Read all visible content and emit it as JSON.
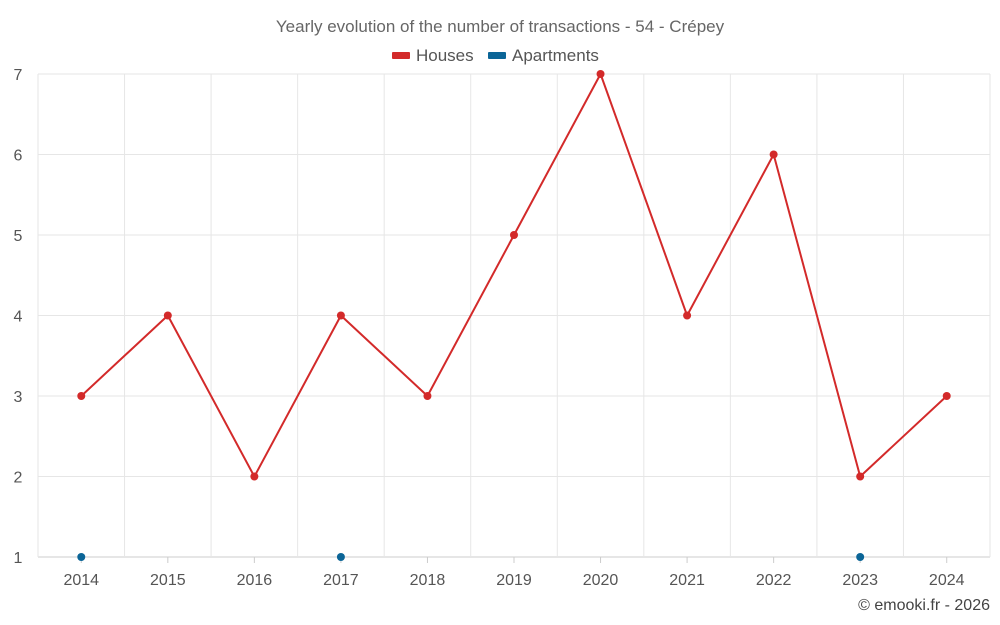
{
  "chart_data": {
    "type": "line",
    "title": "Yearly evolution of the number of transactions - 54 - Crépey",
    "categories": [
      "2014",
      "2015",
      "2016",
      "2017",
      "2018",
      "2019",
      "2020",
      "2021",
      "2022",
      "2023",
      "2024"
    ],
    "series": [
      {
        "name": "Houses",
        "color": "#d32a2a",
        "values": [
          3,
          4,
          2,
          4,
          3,
          5,
          7,
          4,
          6,
          2,
          3
        ]
      },
      {
        "name": "Apartments",
        "color": "#0b6597",
        "values": [
          1,
          null,
          null,
          1,
          null,
          null,
          null,
          null,
          null,
          1,
          null
        ]
      }
    ],
    "ylim": [
      1,
      7
    ],
    "yticks": [
      1,
      2,
      3,
      4,
      5,
      6,
      7
    ],
    "xlabel": "",
    "ylabel": "",
    "grid": true,
    "legend_position": "top-center"
  },
  "credit": "© emooki.fr - 2026"
}
